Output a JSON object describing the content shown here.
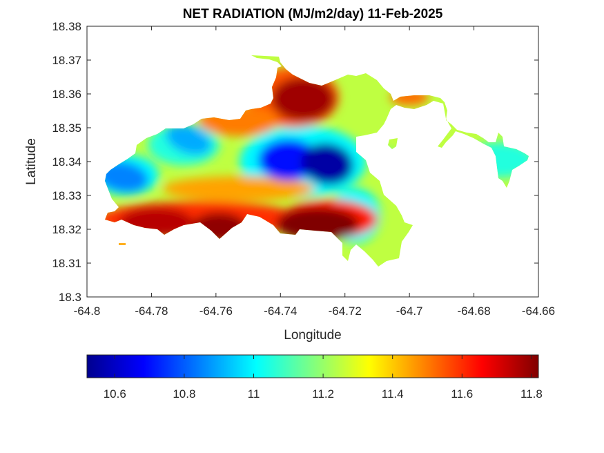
{
  "chart_data": {
    "type": "heatmap",
    "title": "NET RADIATION (MJ/m2/day) 11-Feb-2025",
    "xlabel": "Longitude",
    "ylabel": "Latitude",
    "xlim": [
      -64.8,
      -64.66
    ],
    "ylim": [
      18.3,
      18.38
    ],
    "xticks": [
      -64.8,
      -64.78,
      -64.76,
      -64.74,
      -64.72,
      -64.7,
      -64.68,
      -64.66
    ],
    "xtick_labels": [
      "-64.8",
      "-64.78",
      "-64.76",
      "-64.74",
      "-64.72",
      "-64.7",
      "-64.68",
      "-64.66"
    ],
    "yticks": [
      18.3,
      18.31,
      18.32,
      18.33,
      18.34,
      18.35,
      18.36,
      18.37,
      18.38
    ],
    "ytick_labels": [
      "18.3",
      "18.31",
      "18.32",
      "18.33",
      "18.34",
      "18.35",
      "18.36",
      "18.37",
      "18.38"
    ],
    "colormap": "jet",
    "colorbar": {
      "orientation": "horizontal",
      "placement": "bottom",
      "range": [
        10.52,
        11.82
      ],
      "ticks": [
        10.6,
        10.8,
        11.0,
        11.2,
        11.4,
        11.6,
        11.8
      ],
      "tick_labels": [
        "10.6",
        "10.8",
        "11",
        "11.2",
        "11.4",
        "11.6",
        "11.8"
      ]
    },
    "grid": false,
    "features": {
      "min_center": {
        "lon": -64.7255,
        "lat": 18.3393,
        "value": 10.55
      },
      "secondary_low": {
        "lon": -64.7375,
        "lat": 18.3405,
        "value": 10.7
      },
      "northwest_low": {
        "lon": -64.7685,
        "lat": 18.3465,
        "value": 10.9
      },
      "west_low": {
        "lon": -64.789,
        "lat": 18.3355,
        "value": 10.85
      },
      "north_high": {
        "lon": -64.733,
        "lat": 18.3585,
        "value": 11.78
      },
      "south_high_1": {
        "lon": -64.7785,
        "lat": 18.322,
        "value": 11.75
      },
      "south_high_2": {
        "lon": -64.759,
        "lat": 18.3205,
        "value": 11.8
      },
      "south_high_3": {
        "lon": -64.7285,
        "lat": 18.3215,
        "value": 11.82
      },
      "east_region_value": 11.05,
      "background_value": 11.25
    }
  }
}
